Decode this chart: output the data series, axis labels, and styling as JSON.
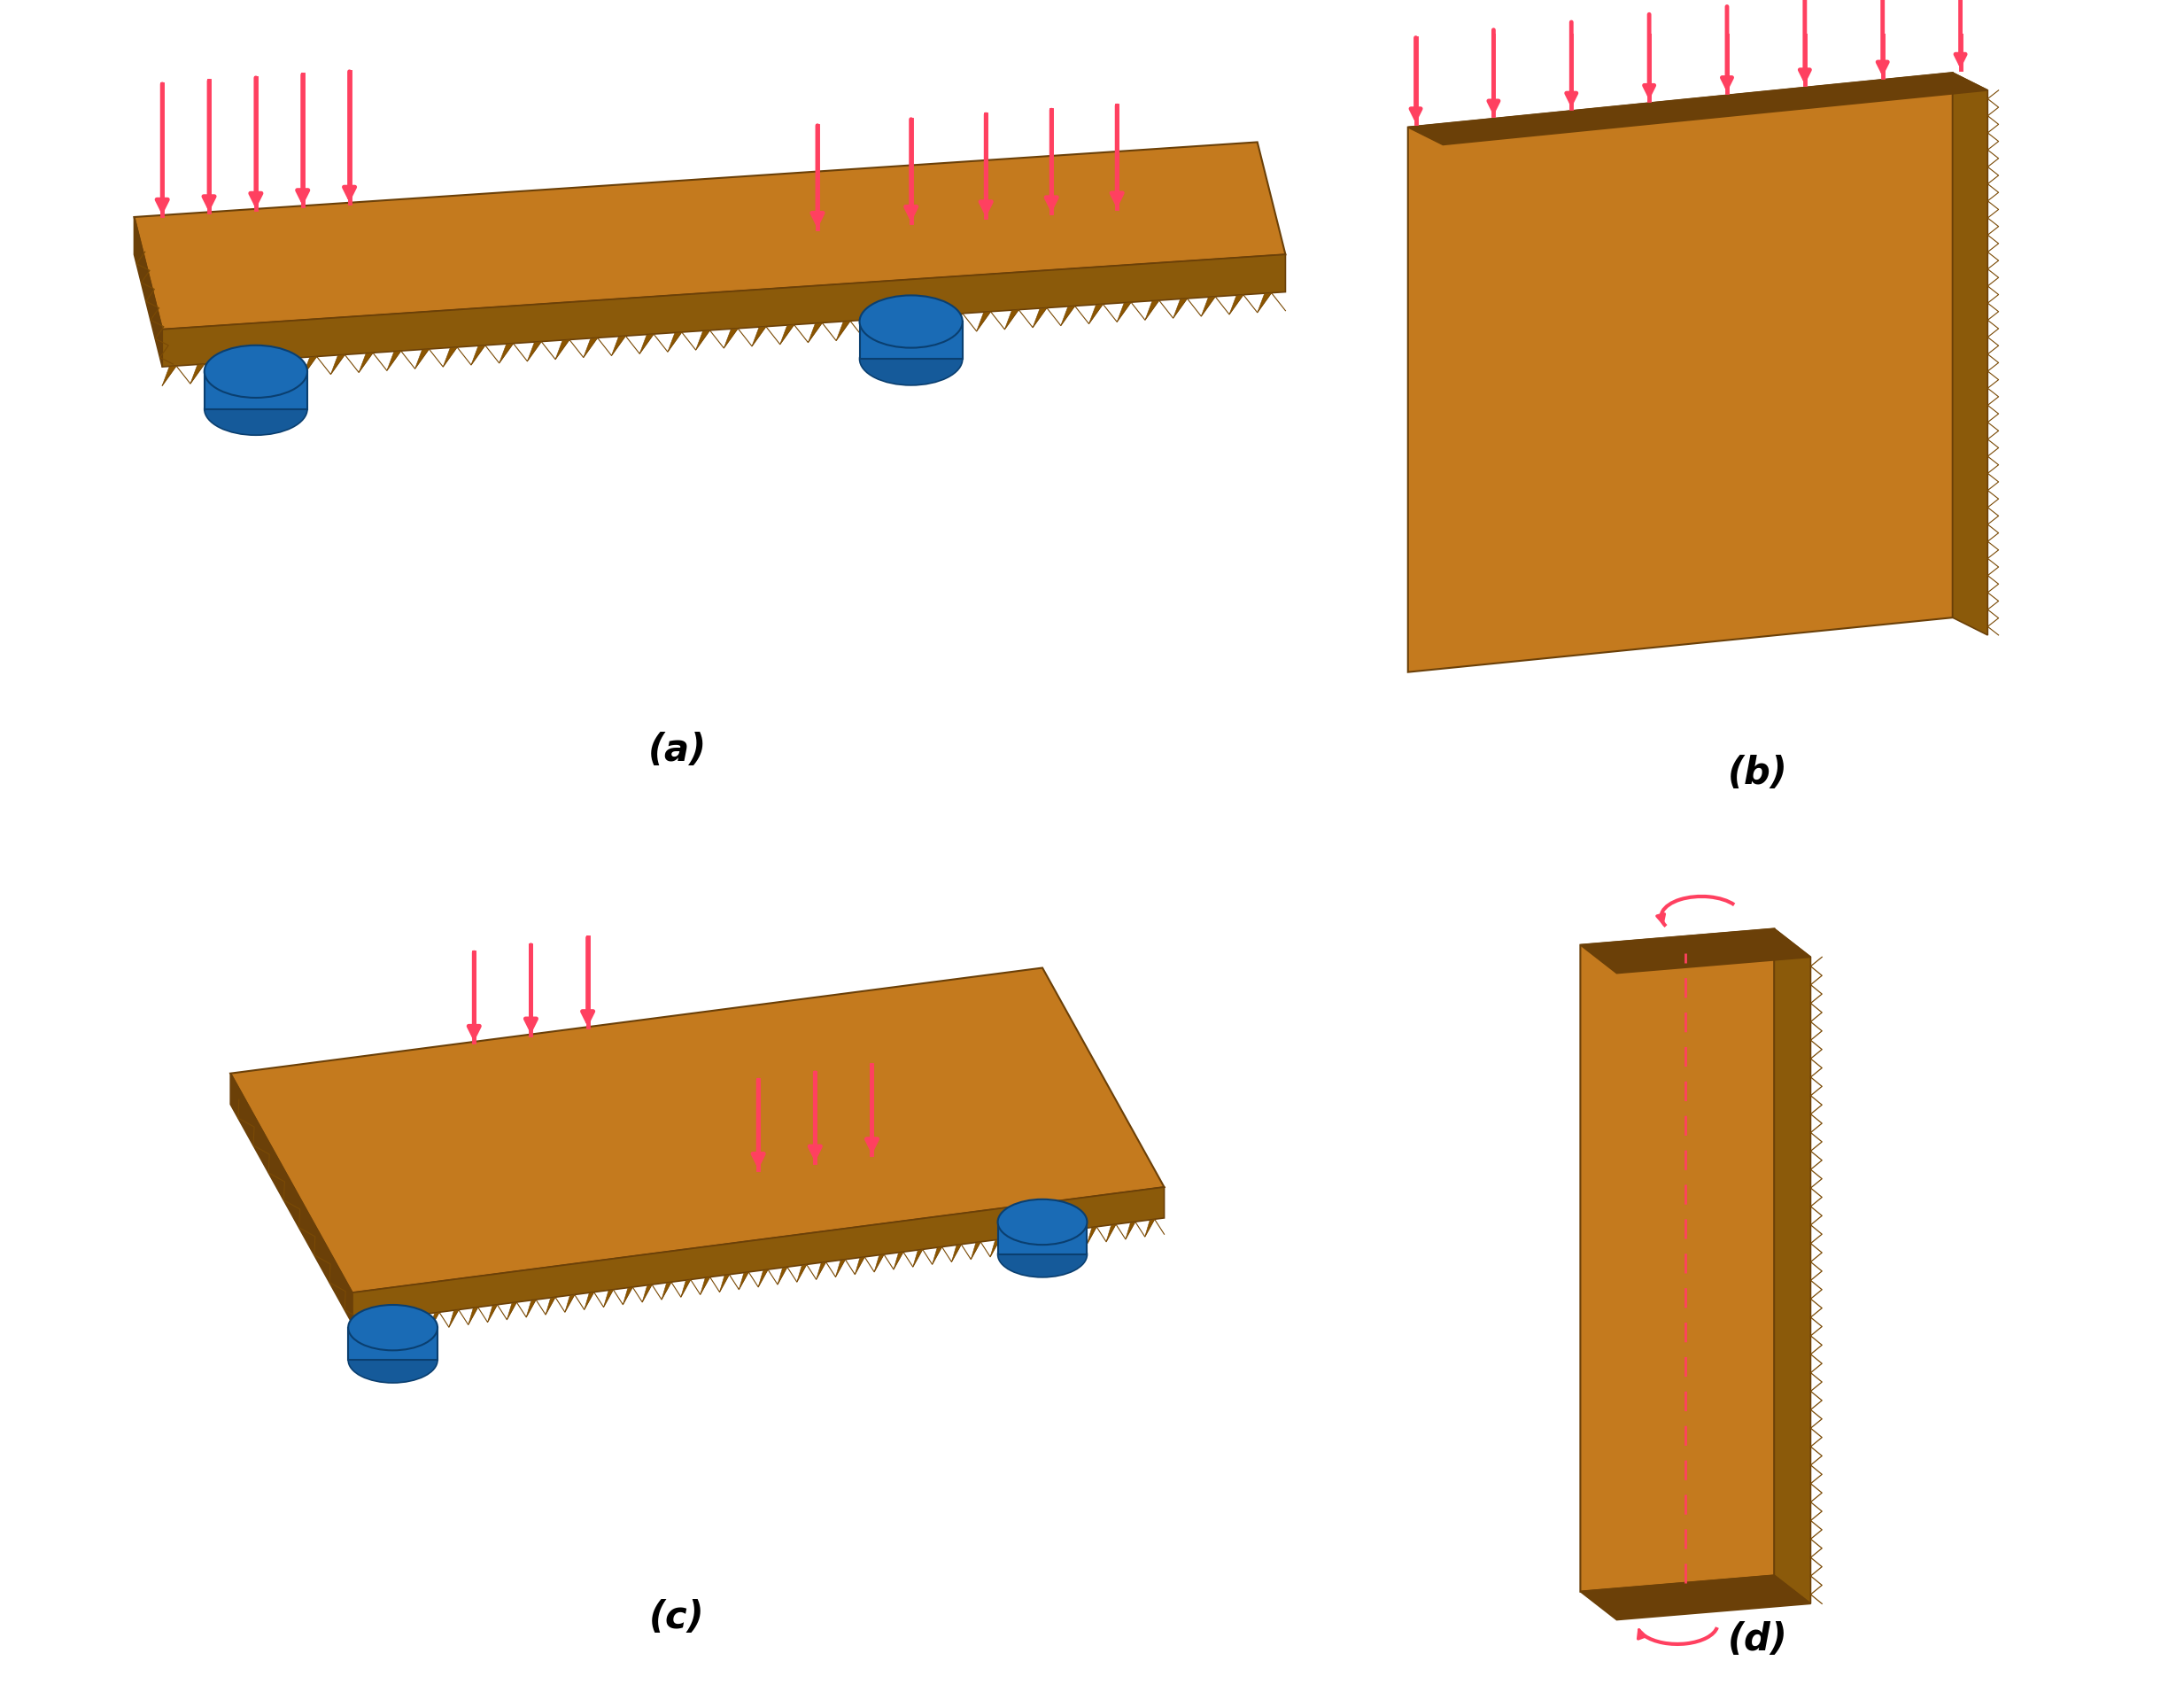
{
  "bg_color": "#ffffff",
  "cardboard_top_color": "#C47A1E",
  "cardboard_face_color": "#B87018",
  "cardboard_side_color": "#8B5A0A",
  "cardboard_dark_color": "#6B4008",
  "flute_color": "#7A4A05",
  "flute_tri_color": "#8B5500",
  "blue_support_color": "#1A6BB5",
  "blue_support_dark": "#0A3F70",
  "arrow_color": "#FF4060",
  "label_color": "#000000",
  "label_fontsize": 30,
  "subfig_labels": [
    "(a)",
    "(b)",
    "(c)",
    "(d)"
  ]
}
